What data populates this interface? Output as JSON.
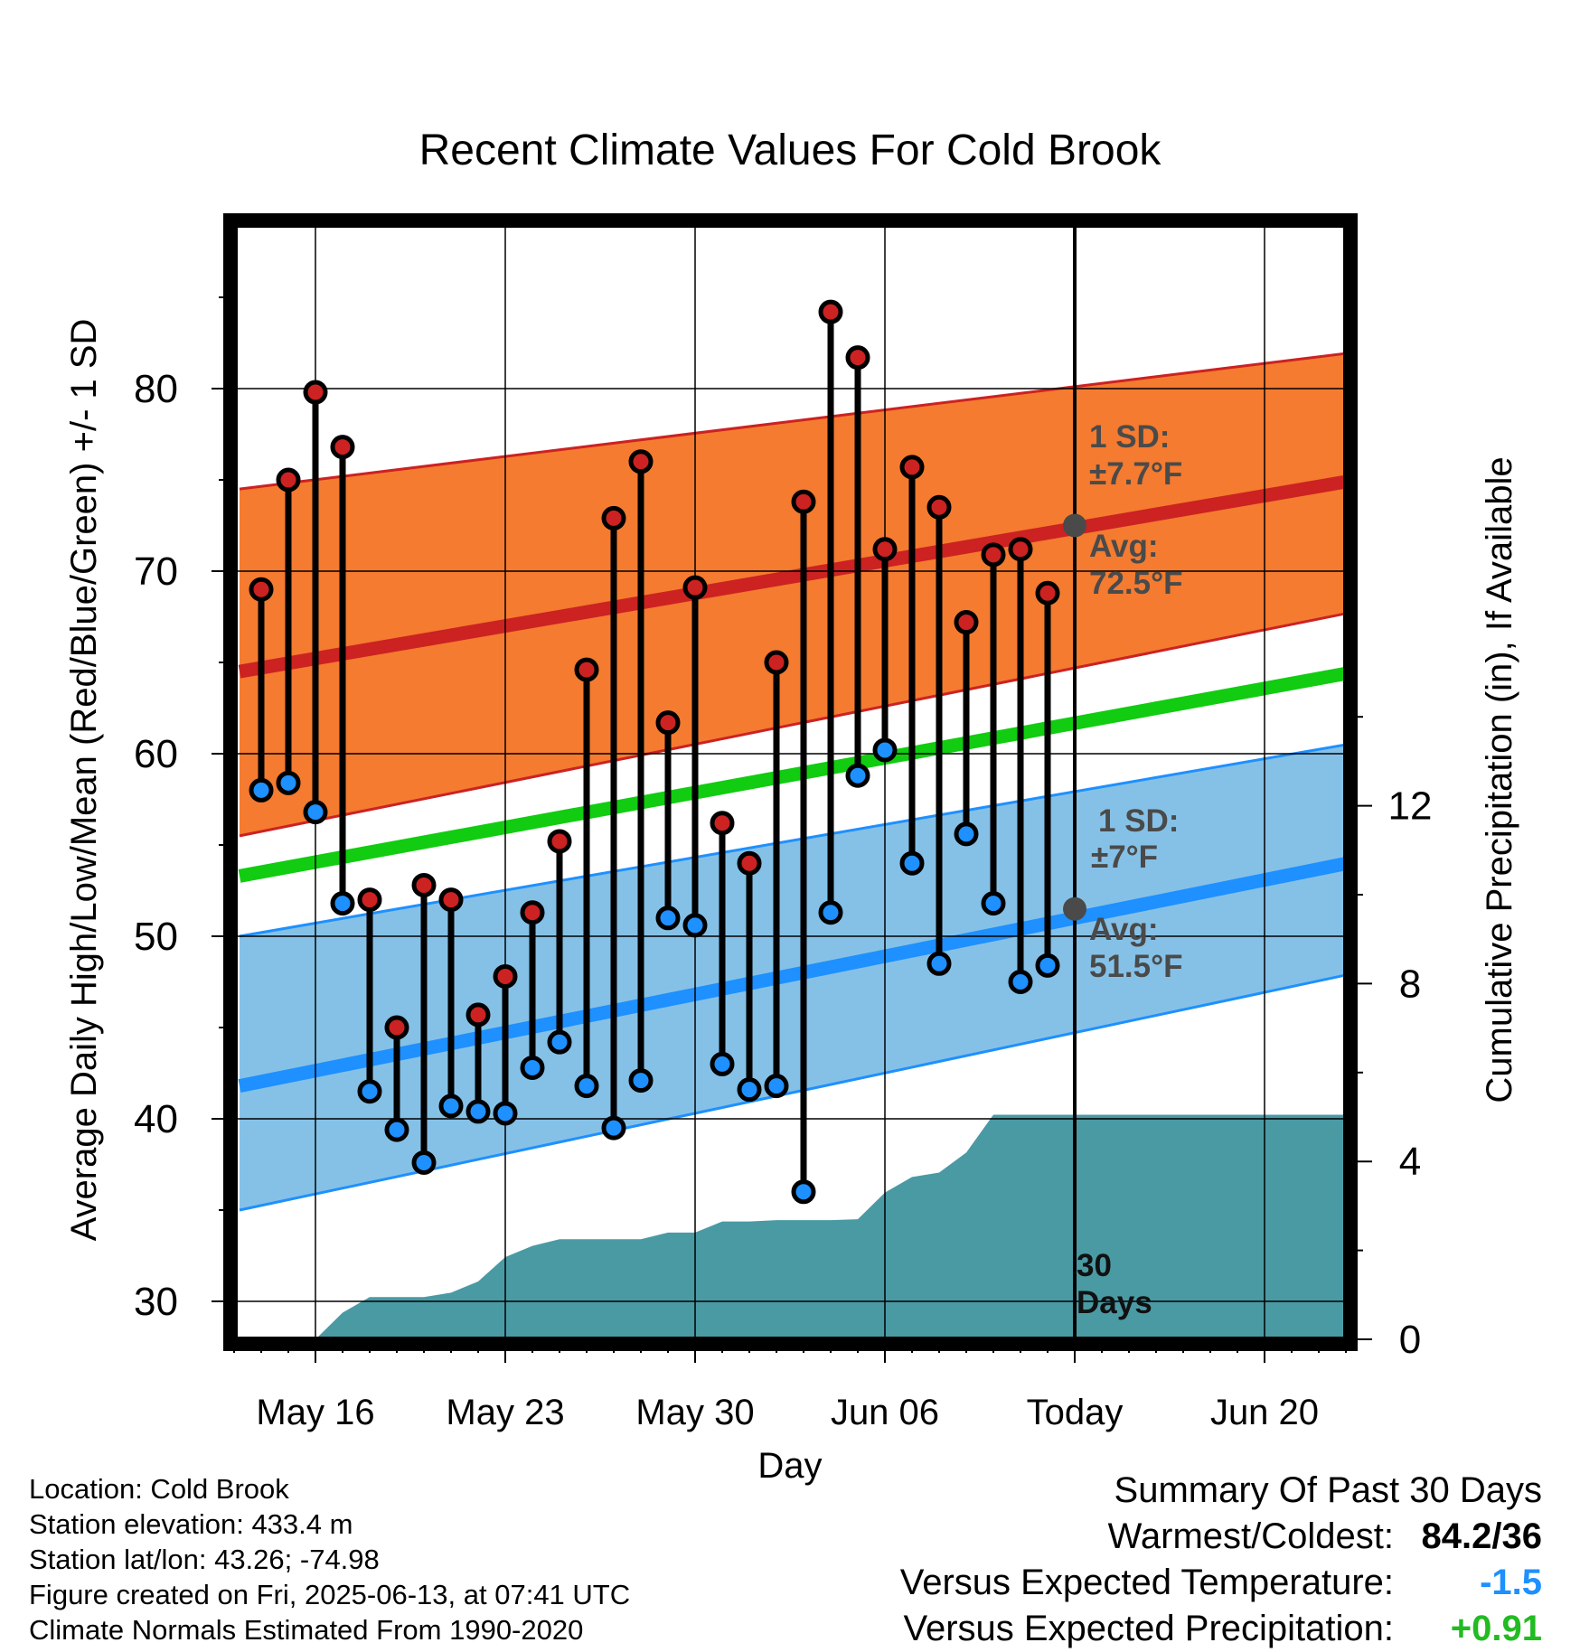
{
  "chart_data": {
    "type": "line",
    "title": "Recent Climate Values For Cold Brook",
    "xlabel": "Day",
    "ylabel": "Average Daily High/Low/Mean (Red/Blue/Green) +/- 1 SD",
    "y2label": "Cumulative Precipitation (in), If Available",
    "xlim": [
      -3.5,
      38.8
    ],
    "ylim": [
      28.5,
      90
    ],
    "y2lim": [
      0,
      24.2
    ],
    "xticks": [
      {
        "x": 0,
        "label": "May 16"
      },
      {
        "x": 7,
        "label": "May 23"
      },
      {
        "x": 14,
        "label": "May 30"
      },
      {
        "x": 21,
        "label": "Jun 06"
      },
      {
        "x": 28,
        "label": "Today"
      },
      {
        "x": 35,
        "label": "Jun 20"
      }
    ],
    "yticks": [
      30,
      40,
      50,
      60,
      70,
      80
    ],
    "y2ticks": [
      0,
      4,
      8,
      12
    ],
    "grid": true,
    "today_x": 28,
    "window_label": [
      "30",
      "Days"
    ],
    "normals": {
      "x": [
        -2.8,
        38.4
      ],
      "high_avg": [
        64.5,
        75.0
      ],
      "high_upper": [
        74.5,
        82.0
      ],
      "high_lower": [
        55.5,
        67.8
      ],
      "low_avg": [
        41.8,
        54.1
      ],
      "low_upper": [
        50.0,
        60.6
      ],
      "low_lower": [
        35.0,
        48.0
      ],
      "mean_avg": [
        53.3,
        64.5
      ]
    },
    "high_annotation": {
      "sd_label": "1 SD:",
      "sd_value": "±7.7°F",
      "avg_label": "Avg:",
      "avg_value": "72.5°F",
      "marker_value": 72.5
    },
    "low_annotation": {
      "sd_label": "1 SD:",
      "sd_value": "±7°F",
      "avg_label": "Avg:",
      "avg_value": "51.5°F",
      "marker_value": 51.5
    },
    "days": [
      -2,
      -1,
      0,
      1,
      2,
      3,
      4,
      5,
      6,
      7,
      8,
      9,
      10,
      11,
      12,
      13,
      14,
      15,
      16,
      17,
      18,
      19,
      20,
      21,
      22,
      23,
      24,
      25,
      26,
      27
    ],
    "series": [
      {
        "name": "High",
        "color": "#cc2222",
        "values": [
          69.0,
          75.0,
          79.8,
          76.8,
          52.0,
          45.0,
          52.8,
          52.0,
          45.7,
          47.8,
          51.3,
          55.2,
          64.6,
          72.9,
          76.0,
          61.7,
          69.1,
          56.2,
          54.0,
          65.0,
          73.8,
          84.2,
          81.7,
          71.2,
          75.7,
          73.5,
          67.2,
          70.9,
          71.2,
          68.8
        ]
      },
      {
        "name": "Low",
        "color": "#1e90ff",
        "values": [
          58.0,
          58.4,
          56.8,
          51.8,
          41.5,
          39.4,
          37.6,
          40.7,
          40.4,
          40.3,
          42.8,
          44.2,
          41.8,
          39.5,
          42.1,
          51.0,
          50.6,
          43.0,
          41.6,
          41.8,
          36.0,
          51.3,
          58.8,
          60.2,
          54.0,
          48.5,
          55.6,
          51.8,
          47.5,
          48.4
        ]
      }
    ],
    "precipitation": {
      "name": "Cumulative Precipitation",
      "color": "#4a9aa4",
      "x": [
        0,
        1,
        2,
        3,
        4,
        5,
        6,
        7,
        8,
        9,
        10,
        11,
        12,
        13,
        14,
        15,
        16,
        17,
        18,
        19,
        20,
        21,
        22,
        23,
        24,
        25,
        26,
        27,
        38.4
      ],
      "values": [
        0,
        0.6,
        0.95,
        0.95,
        0.95,
        1.05,
        1.3,
        1.85,
        2.1,
        2.25,
        2.25,
        2.25,
        2.25,
        2.4,
        2.4,
        2.65,
        2.65,
        2.68,
        2.68,
        2.68,
        2.7,
        3.3,
        3.65,
        3.75,
        4.2,
        5.05,
        5.05,
        5.05,
        5.05
      ]
    }
  },
  "footer": {
    "location": "Location: Cold Brook",
    "elevation": "Station elevation: 433.4 m",
    "latlon": "Station lat/lon: 43.26; -74.98",
    "created": "Figure created on Fri, 2025-06-13, at 07:41 UTC",
    "normals": "Climate Normals Estimated From 1990-2020"
  },
  "summary": {
    "title": "Summary Of Past 30 Days",
    "warmest_label": "Warmest/Coldest:",
    "warmest_value": "84.2/36",
    "temp_label": "Versus Expected Temperature:",
    "temp_value": "-1.5",
    "temp_color": "#1e90ff",
    "precip_label": "Versus Expected Precipitation:",
    "precip_value": "+0.91",
    "precip_color": "#22bb22"
  },
  "colors": {
    "high_band": "#f47b2f",
    "high_line": "#cc2222",
    "low_band": "#85c1e7",
    "low_line": "#1e90ff",
    "mean_line": "#11cc11",
    "annotation": "#4a4a4a",
    "precip": "#4a9aa4"
  }
}
